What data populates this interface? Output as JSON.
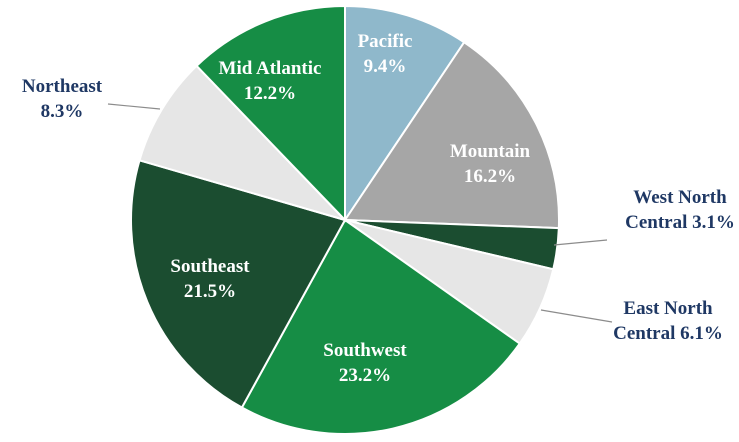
{
  "chart_data": {
    "type": "pie",
    "title": "",
    "slices": [
      {
        "name": "Pacific",
        "value": 9.4,
        "label": "9.4%",
        "color": "#8fb8cb",
        "label_color": "#ffffff",
        "label_place": "inside"
      },
      {
        "name": "Mountain",
        "value": 16.2,
        "label": "16.2%",
        "color": "#a6a6a6",
        "label_color": "#ffffff",
        "label_place": "inside"
      },
      {
        "name": "West North Central",
        "value": 3.1,
        "label": "3.1%",
        "color": "#1b4d30",
        "label_color": "#1f3864",
        "label_place": "outside"
      },
      {
        "name": "East North Central",
        "value": 6.1,
        "label": "6.1%",
        "color": "#e6e6e6",
        "label_color": "#1f3864",
        "label_place": "outside"
      },
      {
        "name": "Southwest",
        "value": 23.2,
        "label": "23.2%",
        "color": "#168d45",
        "label_color": "#ffffff",
        "label_place": "inside"
      },
      {
        "name": "Southeast",
        "value": 21.5,
        "label": "21.5%",
        "color": "#1b4d30",
        "label_color": "#ffffff",
        "label_place": "inside"
      },
      {
        "name": "Northeast",
        "value": 8.3,
        "label": "8.3%",
        "color": "#e6e6e6",
        "label_color": "#1f3864",
        "label_place": "outside"
      },
      {
        "name": "Mid Atlantic",
        "value": 12.2,
        "label": "12.2%",
        "color": "#168d45",
        "label_color": "#ffffff",
        "label_place": "inside"
      }
    ]
  }
}
